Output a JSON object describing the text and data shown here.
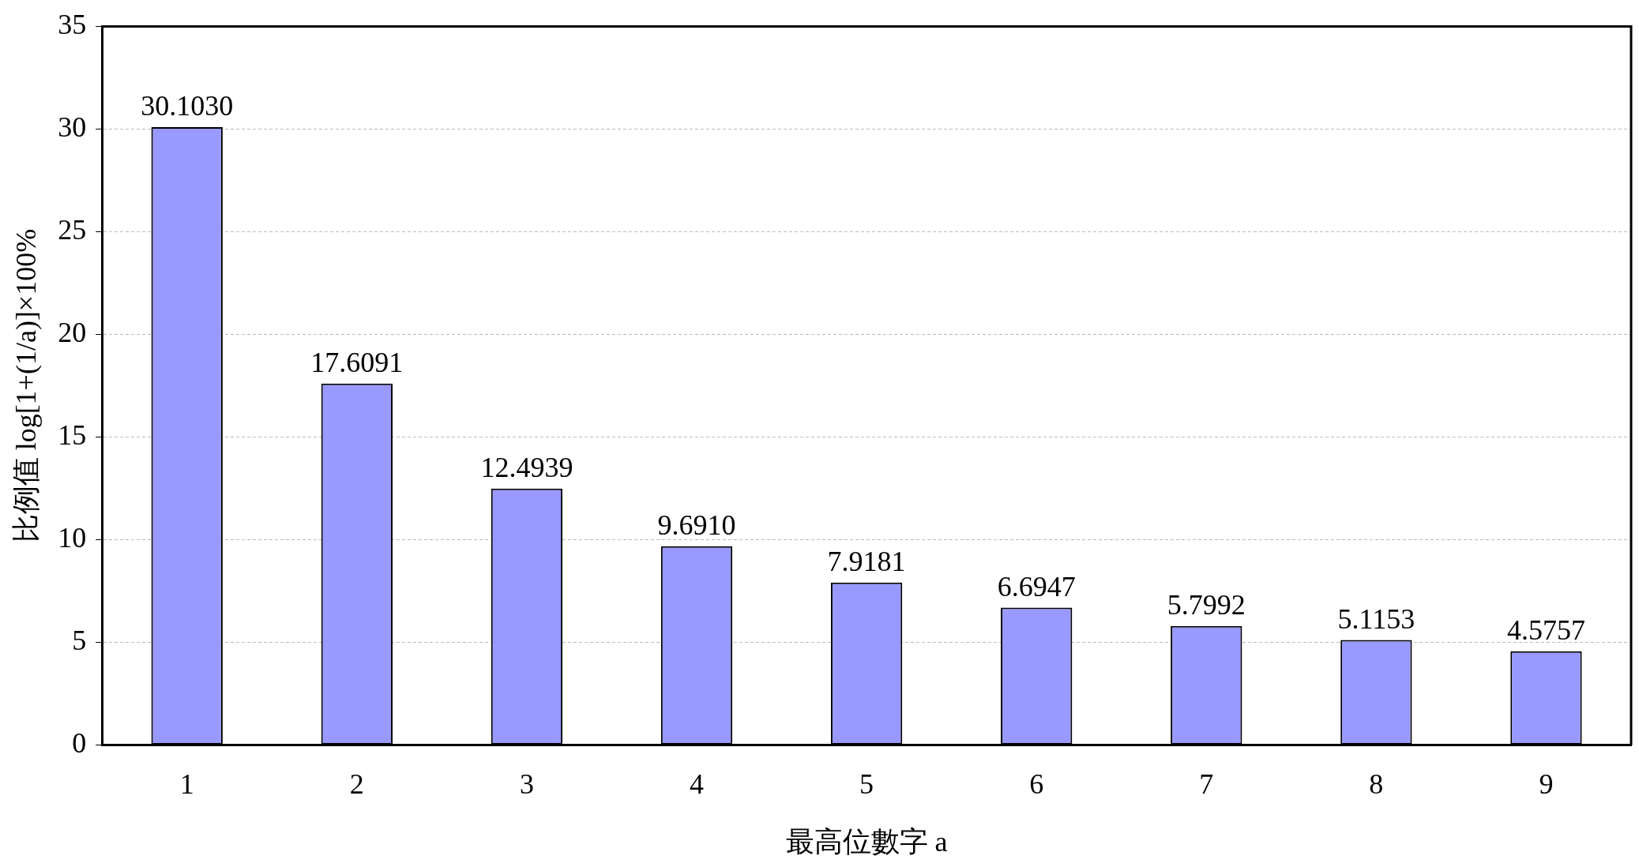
{
  "chart_data": {
    "type": "bar",
    "xlabel": "最高位數字 a",
    "ylabel": "比例值 log[1+(1/a)]×100%",
    "categories": [
      "1",
      "2",
      "3",
      "4",
      "5",
      "6",
      "7",
      "8",
      "9"
    ],
    "values": [
      30.103,
      17.6091,
      12.4939,
      9.691,
      7.9181,
      6.6947,
      5.7992,
      5.1153,
      4.5757
    ],
    "color": "#9999ff",
    "ylim": [
      0,
      35
    ],
    "yticks": [
      0,
      5,
      10,
      15,
      20,
      25,
      30,
      35
    ],
    "value_labels": [
      "30.1030",
      "17.6091",
      "12.4939",
      "9.6910",
      "7.9181",
      "6.6947",
      "5.7992",
      "5.1153",
      "4.5757"
    ],
    "grid": "y",
    "legend": false
  }
}
